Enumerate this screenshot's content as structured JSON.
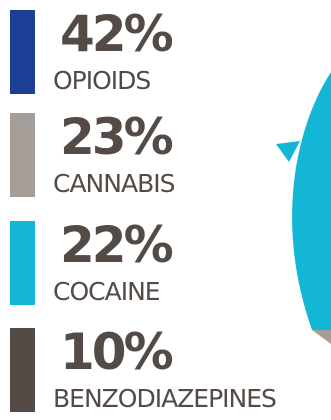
{
  "chart_data": {
    "type": "pie",
    "title": "",
    "legend_position": "left",
    "slices": [
      {
        "label": "OPIOIDS",
        "value": 42,
        "value_text": "42%",
        "color": "#1e3f96"
      },
      {
        "label": "CANNABIS",
        "value": 23,
        "value_text": "23%",
        "color": "#a59d98"
      },
      {
        "label": "COCAINE",
        "value": 22,
        "value_text": "22%",
        "color": "#13b6d4"
      },
      {
        "label": "BENZODIAZEPINES",
        "value": 10,
        "value_text": "10%",
        "color": "#554b46"
      }
    ]
  },
  "colors": {
    "text": "#554b46",
    "background": "#ffffff"
  }
}
